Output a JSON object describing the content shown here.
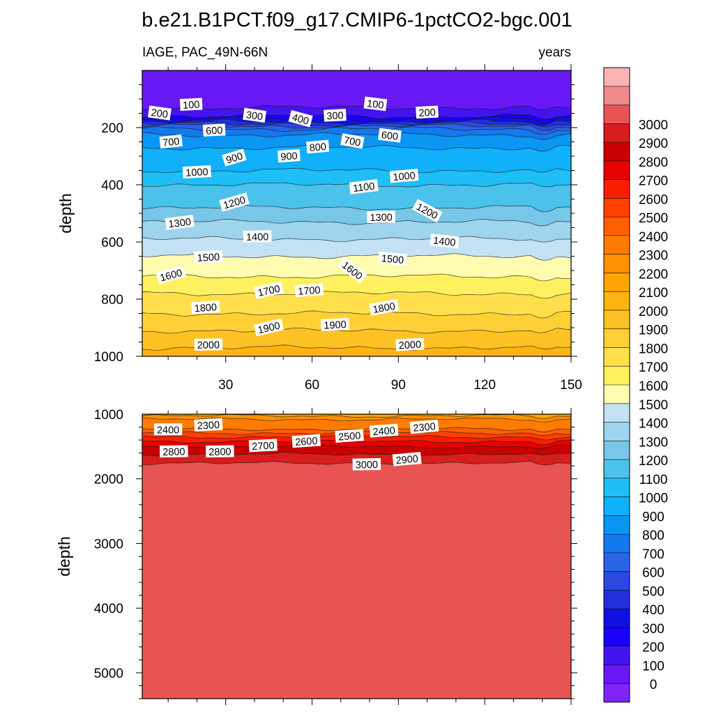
{
  "chart_data": {
    "type": "heatmap",
    "title": "b.e21.B1PCT.f09_g17.CMIP6-1pctCO2-bgc.001",
    "left_subtitle": "IAGE, PAC_49N-66N",
    "right_subtitle": "years",
    "xlabel": "",
    "ylabel": "depth",
    "xlim": [
      1,
      150
    ],
    "x_ticks": [
      30,
      60,
      90,
      120,
      150
    ],
    "x_tick_labels": [
      "30",
      "60",
      "90",
      "120",
      "150"
    ],
    "panels": [
      {
        "name": "upper",
        "ylim": [
          0,
          1000
        ],
        "y_ticks": [
          200,
          400,
          600,
          800,
          1000
        ],
        "y_tick_labels": [
          "200",
          "400",
          "600",
          "800",
          "1000"
        ],
        "show_x_tick_labels": true,
        "value_profile": [
          [
            0,
            0
          ],
          [
            100,
            0
          ],
          [
            110,
            50
          ],
          [
            130,
            100
          ],
          [
            160,
            200
          ],
          [
            180,
            400
          ],
          [
            195,
            600
          ],
          [
            205,
            700
          ],
          [
            225,
            800
          ],
          [
            270,
            900
          ],
          [
            350,
            1000
          ],
          [
            400,
            1100
          ],
          [
            480,
            1200
          ],
          [
            530,
            1300
          ],
          [
            590,
            1400
          ],
          [
            650,
            1500
          ],
          [
            720,
            1600
          ],
          [
            780,
            1700
          ],
          [
            850,
            1800
          ],
          [
            910,
            1900
          ],
          [
            970,
            2000
          ],
          [
            1000,
            2030
          ]
        ],
        "contour_labels": [
          {
            "text": "100",
            "x": 18,
            "d": 120,
            "a": -3
          },
          {
            "text": "200",
            "x": 7,
            "d": 150,
            "a": 8
          },
          {
            "text": "300",
            "x": 40,
            "d": 158,
            "a": 8
          },
          {
            "text": "400",
            "x": 56,
            "d": 170,
            "a": 15
          },
          {
            "text": "300",
            "x": 68,
            "d": 158,
            "a": -3
          },
          {
            "text": "100",
            "x": 82,
            "d": 118,
            "a": 7
          },
          {
            "text": "200",
            "x": 100,
            "d": 147,
            "a": -3
          },
          {
            "text": "600",
            "x": 26,
            "d": 210,
            "a": -3
          },
          {
            "text": "700",
            "x": 11,
            "d": 250,
            "a": -6
          },
          {
            "text": "600",
            "x": 87,
            "d": 228,
            "a": 7
          },
          {
            "text": "700",
            "x": 74,
            "d": 248,
            "a": 10
          },
          {
            "text": "800",
            "x": 62,
            "d": 268,
            "a": -5
          },
          {
            "text": "900",
            "x": 33,
            "d": 306,
            "a": -17
          },
          {
            "text": "900",
            "x": 52,
            "d": 300,
            "a": -4
          },
          {
            "text": "1000",
            "x": 20,
            "d": 356,
            "a": -3
          },
          {
            "text": "1000",
            "x": 92,
            "d": 370,
            "a": -5
          },
          {
            "text": "1100",
            "x": 78,
            "d": 408,
            "a": -7
          },
          {
            "text": "1200",
            "x": 33,
            "d": 462,
            "a": -16
          },
          {
            "text": "1200",
            "x": 100,
            "d": 492,
            "a": 28
          },
          {
            "text": "1300",
            "x": 14,
            "d": 533,
            "a": -7
          },
          {
            "text": "1300",
            "x": 84,
            "d": 514,
            "a": -1
          },
          {
            "text": "1400",
            "x": 41,
            "d": 582,
            "a": -1
          },
          {
            "text": "1400",
            "x": 106,
            "d": 598,
            "a": 6
          },
          {
            "text": "1500",
            "x": 24,
            "d": 654,
            "a": -3
          },
          {
            "text": "1500",
            "x": 88,
            "d": 660,
            "a": 5
          },
          {
            "text": "1600",
            "x": 11,
            "d": 716,
            "a": -15
          },
          {
            "text": "1600",
            "x": 74,
            "d": 700,
            "a": 38
          },
          {
            "text": "1700",
            "x": 45,
            "d": 770,
            "a": -12
          },
          {
            "text": "1700",
            "x": 59,
            "d": 770,
            "a": -4
          },
          {
            "text": "1800",
            "x": 23,
            "d": 830,
            "a": -4
          },
          {
            "text": "1800",
            "x": 85,
            "d": 830,
            "a": -10
          },
          {
            "text": "1900",
            "x": 45,
            "d": 900,
            "a": -13
          },
          {
            "text": "1900",
            "x": 68,
            "d": 890,
            "a": -3
          },
          {
            "text": "2000",
            "x": 24,
            "d": 960,
            "a": -1
          },
          {
            "text": "2000",
            "x": 94,
            "d": 960,
            "a": -3
          }
        ]
      },
      {
        "name": "lower",
        "ylim": [
          1000,
          5400
        ],
        "y_ticks": [
          1000,
          2000,
          3000,
          4000,
          5000
        ],
        "y_tick_labels": [
          "1000",
          "2000",
          "3000",
          "4000",
          "5000"
        ],
        "show_x_tick_labels": false,
        "value_profile": [
          [
            1000,
            2150
          ],
          [
            1080,
            2300
          ],
          [
            1230,
            2400
          ],
          [
            1290,
            2500
          ],
          [
            1350,
            2600
          ],
          [
            1420,
            2700
          ],
          [
            1500,
            2800
          ],
          [
            1620,
            2900
          ],
          [
            1760,
            3000
          ],
          [
            1800,
            3020
          ],
          [
            5400,
            3020
          ]
        ],
        "contour_labels": [
          {
            "text": "2400",
            "x": 10,
            "d": 1240,
            "a": 0
          },
          {
            "text": "2300",
            "x": 24,
            "d": 1170,
            "a": -3
          },
          {
            "text": "2800",
            "x": 12,
            "d": 1580,
            "a": -1
          },
          {
            "text": "2800",
            "x": 28,
            "d": 1580,
            "a": -1
          },
          {
            "text": "2700",
            "x": 43,
            "d": 1490,
            "a": -3
          },
          {
            "text": "2600",
            "x": 58,
            "d": 1420,
            "a": -4
          },
          {
            "text": "2500",
            "x": 73,
            "d": 1340,
            "a": -4
          },
          {
            "text": "2400",
            "x": 85,
            "d": 1260,
            "a": -4
          },
          {
            "text": "2300",
            "x": 99,
            "d": 1200,
            "a": -5
          },
          {
            "text": "3000",
            "x": 79,
            "d": 1780,
            "a": -1
          },
          {
            "text": "2900",
            "x": 93,
            "d": 1700,
            "a": -5
          }
        ]
      }
    ],
    "colorbar": {
      "levels": [
        0,
        100,
        200,
        300,
        400,
        500,
        600,
        700,
        800,
        900,
        1000,
        1100,
        1200,
        1300,
        1400,
        1500,
        1600,
        1700,
        1800,
        1900,
        2000,
        2100,
        2200,
        2300,
        2400,
        2500,
        2600,
        2700,
        2800,
        2900,
        3000
      ],
      "labels": [
        "0",
        "100",
        "200",
        "300",
        "400",
        "500",
        "600",
        "700",
        "800",
        "900",
        "1000",
        "1100",
        "1200",
        "1300",
        "1400",
        "1500",
        "1600",
        "1700",
        "1800",
        "1900",
        "2000",
        "2100",
        "2200",
        "2300",
        "2400",
        "2500",
        "2600",
        "2700",
        "2800",
        "2900",
        "3000"
      ],
      "colors": [
        "#8024f8",
        "#6818f4",
        "#4414f0",
        "#1800f8",
        "#1010e0",
        "#2030d8",
        "#2a48e0",
        "#2a64e6",
        "#1478ee",
        "#0c96f4",
        "#10b0fa",
        "#20bef6",
        "#4ac2ec",
        "#78c6e8",
        "#9ed4ee",
        "#c4e2f4",
        "#fffcb0",
        "#fff060",
        "#ffe04c",
        "#ffd036",
        "#ffc224",
        "#ffb410",
        "#ffa400",
        "#ff9000",
        "#ff7c00",
        "#ff6000",
        "#ff4000",
        "#fa1e00",
        "#e60000",
        "#c80000",
        "#d61e1e",
        "#e85454",
        "#f08a8a",
        "#ffb4b4"
      ]
    }
  }
}
